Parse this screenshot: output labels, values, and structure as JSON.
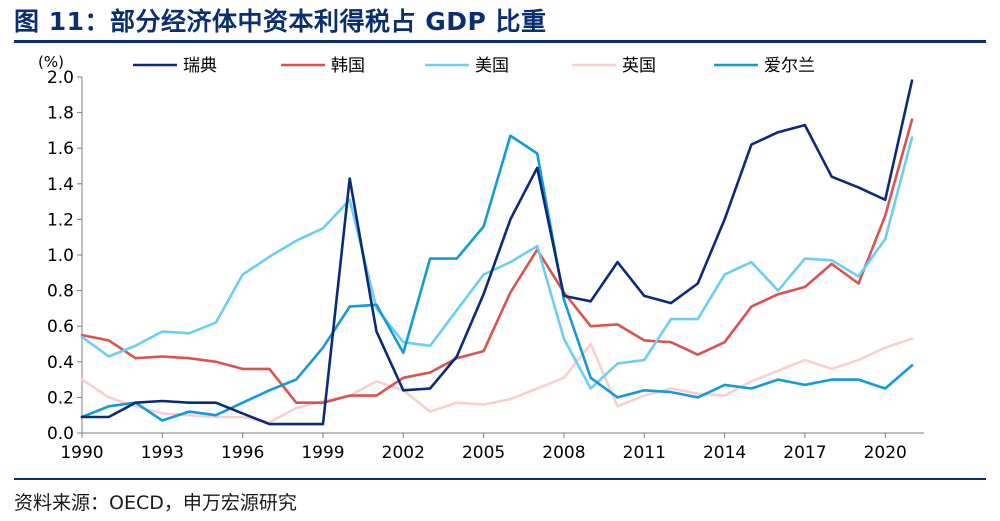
{
  "title": "图 11：部分经济体中资本利得税占 GDP 比重",
  "source": "资料来源：OECD，申万宏源研究",
  "chart_data": {
    "type": "line",
    "unit": "(%)",
    "ylim": [
      0,
      2.0
    ],
    "yticks": [
      0.0,
      0.2,
      0.4,
      0.6,
      0.8,
      1.0,
      1.2,
      1.4,
      1.6,
      1.8,
      2.0
    ],
    "ytick_labels": [
      "0.0",
      "0.2",
      "0.4",
      "0.6",
      "0.8",
      "1.0",
      "1.2",
      "1.4",
      "1.6",
      "1.8",
      "2.0"
    ],
    "xlim": [
      1990,
      2021
    ],
    "xticks": [
      1990,
      1993,
      1996,
      1999,
      2002,
      2005,
      2008,
      2011,
      2014,
      2017,
      2020
    ],
    "xtick_labels": [
      "1990",
      "1993",
      "1996",
      "1999",
      "2002",
      "2005",
      "2008",
      "2011",
      "2014",
      "2017",
      "2020"
    ],
    "grid": false,
    "legend_position": "top",
    "x": [
      1990,
      1991,
      1992,
      1993,
      1994,
      1995,
      1996,
      1997,
      1998,
      1999,
      2000,
      2001,
      2002,
      2003,
      2004,
      2005,
      2006,
      2007,
      2008,
      2009,
      2010,
      2011,
      2012,
      2013,
      2014,
      2015,
      2016,
      2017,
      2018,
      2019,
      2020,
      2021
    ],
    "series": [
      {
        "name": "瑞典",
        "color": "#0b2a78",
        "values": [
          0.09,
          0.09,
          0.17,
          0.18,
          0.17,
          0.17,
          0.11,
          0.05,
          0.05,
          0.05,
          1.43,
          0.57,
          0.24,
          0.25,
          0.43,
          0.78,
          1.2,
          1.49,
          0.77,
          0.74,
          0.96,
          0.77,
          0.73,
          0.84,
          1.2,
          1.62,
          1.69,
          1.73,
          1.44,
          1.38,
          1.31,
          1.98
        ]
      },
      {
        "name": "韩国",
        "color": "#d9534f",
        "values": [
          0.55,
          0.52,
          0.42,
          0.43,
          0.42,
          0.4,
          0.36,
          0.36,
          0.17,
          0.17,
          0.21,
          0.21,
          0.31,
          0.34,
          0.42,
          0.46,
          0.79,
          1.03,
          0.79,
          0.6,
          0.61,
          0.52,
          0.51,
          0.44,
          0.51,
          0.71,
          0.78,
          0.82,
          0.95,
          0.84,
          1.22,
          1.76
        ]
      },
      {
        "name": "美国",
        "color": "#6dcdf2",
        "values": [
          0.54,
          0.43,
          0.49,
          0.57,
          0.56,
          0.62,
          0.89,
          0.99,
          1.08,
          1.15,
          1.31,
          0.7,
          0.51,
          0.49,
          0.69,
          0.89,
          0.96,
          1.05,
          0.53,
          0.25,
          0.39,
          0.41,
          0.64,
          0.64,
          0.89,
          0.96,
          0.8,
          0.98,
          0.97,
          0.88,
          1.09,
          1.66
        ]
      },
      {
        "name": "英国",
        "color": "#f8d0cf",
        "values": [
          0.3,
          0.2,
          0.15,
          0.11,
          0.1,
          0.09,
          0.09,
          0.06,
          0.14,
          0.18,
          0.21,
          0.29,
          0.24,
          0.12,
          0.17,
          0.16,
          0.19,
          0.25,
          0.31,
          0.5,
          0.15,
          0.21,
          0.25,
          0.22,
          0.21,
          0.29,
          0.35,
          0.41,
          0.36,
          0.41,
          0.48,
          0.53
        ]
      },
      {
        "name": "爱尔兰",
        "color": "#139bd6",
        "values": [
          0.09,
          0.15,
          0.17,
          0.07,
          0.12,
          0.1,
          0.17,
          0.24,
          0.3,
          0.48,
          0.71,
          0.72,
          0.45,
          0.98,
          0.98,
          1.16,
          1.67,
          1.57,
          0.75,
          0.31,
          0.2,
          0.24,
          0.23,
          0.2,
          0.27,
          0.25,
          0.3,
          0.27,
          0.3,
          0.3,
          0.25,
          0.38
        ]
      }
    ]
  }
}
